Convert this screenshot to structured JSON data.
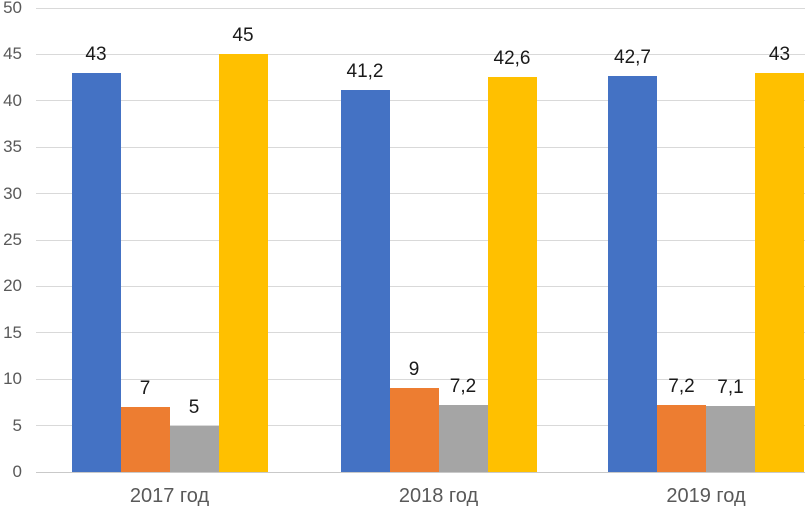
{
  "chart_data": {
    "type": "bar",
    "title": "",
    "xlabel": "",
    "ylabel": "",
    "categories": [
      "2017 год",
      "2018 год",
      "2019 год"
    ],
    "series": [
      {
        "name": "blue-series",
        "color": "#4472C4",
        "values": [
          43,
          41.2,
          42.7
        ],
        "labels": [
          "43",
          "41,2",
          "42,7"
        ]
      },
      {
        "name": "orange-series",
        "color": "#ED7D31",
        "values": [
          7,
          9,
          7.2
        ],
        "labels": [
          "7",
          "9",
          "7,2"
        ]
      },
      {
        "name": "gray-series",
        "color": "#A5A5A5",
        "values": [
          5,
          7.2,
          7.1
        ],
        "labels": [
          "5",
          "7,2",
          "7,1"
        ]
      },
      {
        "name": "yellow-series",
        "color": "#FFC000",
        "values": [
          45,
          42.6,
          43
        ],
        "labels": [
          "45",
          "42,6",
          "43"
        ]
      }
    ],
    "ylim": [
      0,
      50
    ],
    "ytick_step": 5,
    "ytick_labels": [
      "0",
      "5",
      "10",
      "15",
      "20",
      "25",
      "30",
      "35",
      "40",
      "45",
      "50"
    ],
    "grid": true,
    "legend": false,
    "decimal_separator": ",",
    "gridline_color": "#D9D9D9",
    "baseline_color": "#C9C9C9",
    "axis_label_color": "#595959",
    "data_label_color": "#1A1A1A",
    "background_color": "#FFFFFF"
  }
}
